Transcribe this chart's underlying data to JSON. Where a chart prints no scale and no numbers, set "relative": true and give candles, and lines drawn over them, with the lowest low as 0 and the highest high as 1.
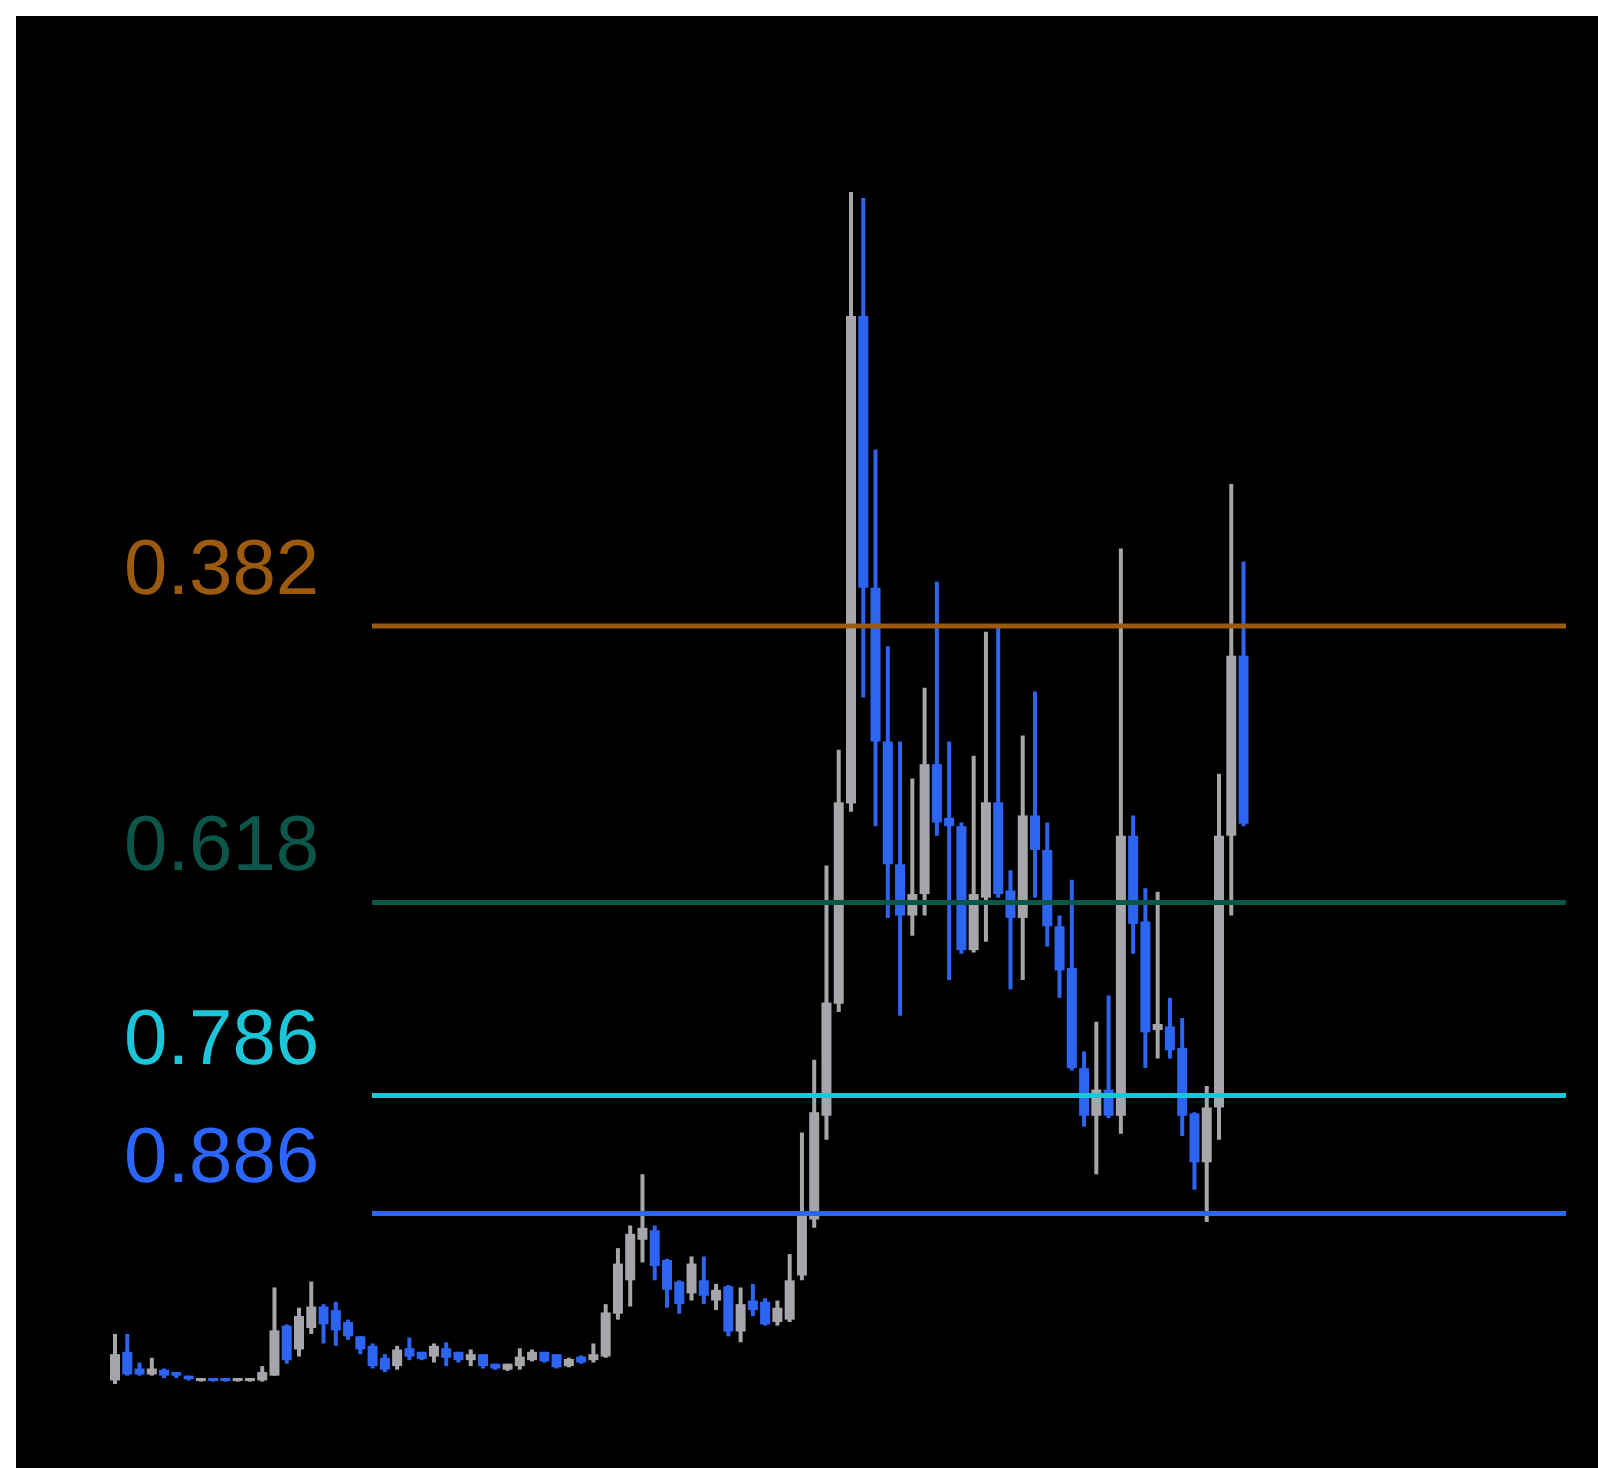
{
  "chart_data": {
    "type": "candlestick",
    "relative": true,
    "categories": [
      null,
      null,
      null,
      null,
      null,
      null,
      null,
      null,
      null,
      null,
      null,
      null,
      null,
      null,
      null,
      null,
      null,
      null,
      null,
      null,
      null,
      null,
      null,
      null,
      null,
      null,
      null,
      null,
      null,
      null,
      null,
      null,
      null,
      null,
      null,
      null,
      null,
      null,
      null,
      null,
      null,
      null,
      null,
      null,
      null,
      null,
      null,
      null,
      null,
      null,
      null,
      null,
      null,
      null,
      null,
      null,
      null,
      null,
      null,
      null,
      null,
      null,
      null,
      null,
      null,
      null,
      null,
      null,
      null,
      null,
      null,
      null,
      null,
      null,
      null,
      null,
      null,
      null,
      null,
      null,
      null,
      null,
      null,
      null,
      null,
      null,
      null,
      null,
      null,
      null,
      null,
      null,
      null
    ],
    "ohlc": [
      [
        0.003,
        0.042,
        0,
        0.025
      ],
      [
        0.027,
        0.042,
        0.007,
        0.008
      ],
      [
        0.013,
        0.018,
        0.007,
        0.008
      ],
      [
        0.008,
        0.022,
        0.007,
        0.013
      ],
      [
        0.012,
        0.013,
        0.005,
        0.007
      ],
      [
        0.01,
        0.01,
        0.005,
        0.007
      ],
      [
        0.007,
        0.007,
        0.003,
        0.004
      ],
      [
        0.003,
        0.005,
        0.002,
        0.005
      ],
      [
        0.005,
        0.005,
        0.002,
        0.003
      ],
      [
        0.005,
        0.005,
        0.002,
        0.003
      ],
      [
        0.003,
        0.005,
        0.002,
        0.005
      ],
      [
        0.003,
        0.005,
        0.002,
        0.005
      ],
      [
        0.003,
        0.015,
        0.002,
        0.01
      ],
      [
        0.007,
        0.081,
        0.007,
        0.045
      ],
      [
        0.049,
        0.05,
        0.017,
        0.02
      ],
      [
        0.029,
        0.064,
        0.023,
        0.057
      ],
      [
        0.047,
        0.086,
        0.042,
        0.065
      ],
      [
        0.065,
        0.067,
        0.034,
        0.05
      ],
      [
        0.062,
        0.069,
        0.032,
        0.045
      ],
      [
        0.052,
        0.054,
        0.037,
        0.04
      ],
      [
        0.04,
        0.04,
        0.025,
        0.029
      ],
      [
        0.032,
        0.034,
        0.013,
        0.015
      ],
      [
        0.022,
        0.025,
        0.01,
        0.012
      ],
      [
        0.015,
        0.032,
        0.012,
        0.029
      ],
      [
        0.03,
        0.039,
        0.02,
        0.023
      ],
      [
        0.027,
        0.027,
        0.02,
        0.021
      ],
      [
        0.023,
        0.034,
        0.018,
        0.032
      ],
      [
        0.03,
        0.035,
        0.015,
        0.022
      ],
      [
        0.027,
        0.027,
        0.018,
        0.02
      ],
      [
        0.02,
        0.029,
        0.015,
        0.025
      ],
      [
        0.025,
        0.025,
        0.013,
        0.015
      ],
      [
        0.017,
        0.017,
        0.012,
        0.013
      ],
      [
        0.012,
        0.017,
        0.011,
        0.017
      ],
      [
        0.015,
        0.03,
        0.012,
        0.023
      ],
      [
        0.02,
        0.029,
        0.019,
        0.027
      ],
      [
        0.027,
        0.027,
        0.018,
        0.019
      ],
      [
        0.025,
        0.025,
        0.013,
        0.014
      ],
      [
        0.015,
        0.022,
        0.014,
        0.021
      ],
      [
        0.023,
        0.024,
        0.017,
        0.018
      ],
      [
        0.02,
        0.034,
        0.018,
        0.025
      ],
      [
        0.023,
        0.067,
        0.022,
        0.06
      ],
      [
        0.059,
        0.114,
        0.054,
        0.101
      ],
      [
        0.087,
        0.133,
        0.065,
        0.126
      ],
      [
        0.121,
        0.176,
        0.102,
        0.131
      ],
      [
        0.129,
        0.133,
        0.087,
        0.099
      ],
      [
        0.104,
        0.105,
        0.064,
        0.079
      ],
      [
        0.086,
        0.087,
        0.059,
        0.067
      ],
      [
        0.076,
        0.107,
        0.07,
        0.101
      ],
      [
        0.087,
        0.107,
        0.067,
        0.074
      ],
      [
        0.07,
        0.084,
        0.062,
        0.079
      ],
      [
        0.082,
        0.083,
        0.04,
        0.044
      ],
      [
        0.044,
        0.081,
        0.035,
        0.067
      ],
      [
        0.07,
        0.084,
        0.057,
        0.062
      ],
      [
        0.069,
        0.072,
        0.049,
        0.05
      ],
      [
        0.052,
        0.07,
        0.049,
        0.064
      ],
      [
        0.054,
        0.109,
        0.052,
        0.087
      ],
      [
        0.091,
        0.211,
        0.087,
        0.144
      ],
      [
        0.138,
        0.272,
        0.131,
        0.228
      ],
      [
        0.225,
        0.435,
        0.205,
        0.32
      ],
      [
        0.319,
        0.532,
        0.312,
        0.488
      ],
      [
        0.487,
        1,
        0.48,
        0.896
      ],
      [
        0.896,
        0.995,
        0.576,
        0.668
      ],
      [
        0.668,
        0.784,
        0.468,
        0.539
      ],
      [
        0.539,
        0.619,
        0.391,
        0.436
      ],
      [
        0.436,
        0.539,
        0.309,
        0.393
      ],
      [
        0.393,
        0.508,
        0.376,
        0.411
      ],
      [
        0.411,
        0.584,
        0.393,
        0.52
      ],
      [
        0.52,
        0.673,
        0.46,
        0.471
      ],
      [
        0.475,
        0.539,
        0.339,
        0.468
      ],
      [
        0.468,
        0.471,
        0.361,
        0.364
      ],
      [
        0.364,
        0.527,
        0.362,
        0.411
      ],
      [
        0.408,
        0.631,
        0.371,
        0.488
      ],
      [
        0.488,
        0.636,
        0.408,
        0.411
      ],
      [
        0.414,
        0.431,
        0.331,
        0.391
      ],
      [
        0.391,
        0.544,
        0.339,
        0.477
      ],
      [
        0.477,
        0.581,
        0.408,
        0.448
      ],
      [
        0.448,
        0.471,
        0.367,
        0.384
      ],
      [
        0.384,
        0.393,
        0.324,
        0.347
      ],
      [
        0.349,
        0.423,
        0.263,
        0.265
      ],
      [
        0.265,
        0.279,
        0.216,
        0.225
      ],
      [
        0.225,
        0.304,
        0.176,
        0.247
      ],
      [
        0.247,
        0.326,
        0.223,
        0.225
      ],
      [
        0.225,
        0.701,
        0.21,
        0.46
      ],
      [
        0.46,
        0.477,
        0.361,
        0.386
      ],
      [
        0.388,
        0.416,
        0.265,
        0.295
      ],
      [
        0.297,
        0.413,
        0.273,
        0.302
      ],
      [
        0.3,
        0.324,
        0.273,
        0.28
      ],
      [
        0.282,
        0.307,
        0.208,
        0.225
      ],
      [
        0.227,
        0.228,
        0.163,
        0.186
      ],
      [
        0.186,
        0.25,
        0.136,
        0.232
      ],
      [
        0.232,
        0.512,
        0.205,
        0.46
      ],
      [
        0.46,
        0.755,
        0.393,
        0.611
      ],
      [
        0.611,
        0.69,
        0.468,
        0.47
      ]
    ],
    "colors": [
      "#a5a5aa",
      "#2e64f2",
      "#2e64f2",
      "#a5a5aa",
      "#2e64f2",
      "#2e64f2",
      "#2e64f2",
      "#a5a5aa",
      "#2e64f2",
      "#2e64f2",
      "#a5a5aa",
      "#a5a5aa",
      "#a5a5aa",
      "#a5a5aa",
      "#2e64f2",
      "#a5a5aa",
      "#a5a5aa",
      "#2e64f2",
      "#2e64f2",
      "#2e64f2",
      "#2e64f2",
      "#2e64f2",
      "#2e64f2",
      "#a5a5aa",
      "#2e64f2",
      "#2e64f2",
      "#a5a5aa",
      "#2e64f2",
      "#2e64f2",
      "#a5a5aa",
      "#2e64f2",
      "#2e64f2",
      "#a5a5aa",
      "#a5a5aa",
      "#a5a5aa",
      "#2e64f2",
      "#2e64f2",
      "#a5a5aa",
      "#2e64f2",
      "#a5a5aa",
      "#a5a5aa",
      "#a5a5aa",
      "#a5a5aa",
      "#a5a5aa",
      "#2e64f2",
      "#2e64f2",
      "#2e64f2",
      "#a5a5aa",
      "#2e64f2",
      "#a5a5aa",
      "#2e64f2",
      "#a5a5aa",
      "#2e64f2",
      "#2e64f2",
      "#a5a5aa",
      "#a5a5aa",
      "#a5a5aa",
      "#a5a5aa",
      "#a5a5aa",
      "#a5a5aa",
      "#a5a5aa",
      "#2e64f2",
      "#2e64f2",
      "#2e64f2",
      "#2e64f2",
      "#a5a5aa",
      "#a5a5aa",
      "#2e64f2",
      "#2e64f2",
      "#2e64f2",
      "#a5a5aa",
      "#a5a5aa",
      "#2e64f2",
      "#2e64f2",
      "#a5a5aa",
      "#2e64f2",
      "#2e64f2",
      "#2e64f2",
      "#2e64f2",
      "#2e64f2",
      "#a5a5aa",
      "#2e64f2",
      "#a5a5aa",
      "#2e64f2",
      "#2e64f2",
      "#a5a5aa",
      "#2e64f2",
      "#2e64f2",
      "#2e64f2",
      "#a5a5aa",
      "#a5a5aa",
      "#a5a5aa",
      "#2e64f2"
    ],
    "ref_lines": [
      {
        "axis": "y",
        "value": 0.636,
        "color": "#9a5a10"
      },
      {
        "axis": "y",
        "value": 0.404,
        "color": "#0d5449"
      },
      {
        "axis": "y",
        "value": 0.242,
        "color": "#1cc6d8"
      },
      {
        "axis": "y",
        "value": 0.143,
        "color": "#2a66ff"
      }
    ],
    "annotations": [
      "0.382",
      "0.618",
      "0.786",
      "0.886"
    ]
  }
}
